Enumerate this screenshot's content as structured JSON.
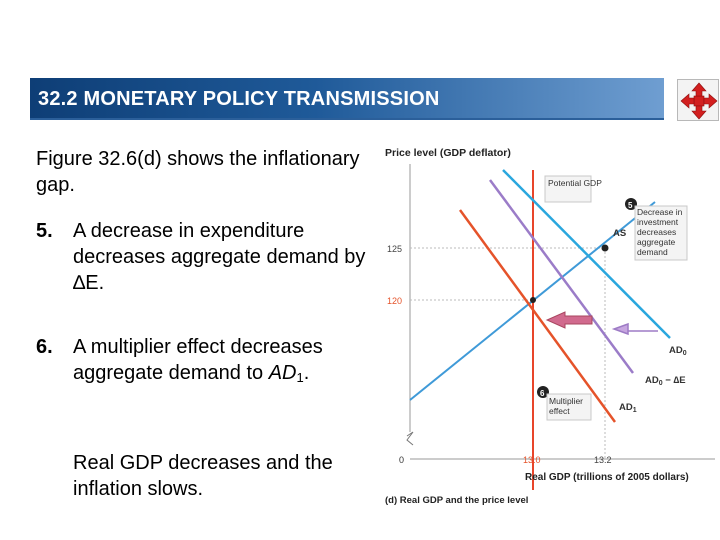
{
  "slide": {
    "title": "32.2  MONETARY POLICY TRANSMISSION",
    "nav_icon": "four-arrows-move-icon",
    "intro": "Figure 32.6(d) shows the inflationary gap.",
    "items": [
      {
        "number": "5.",
        "text": "A decrease in expenditure decreases aggregate demand by ∆E."
      },
      {
        "number": "6.",
        "text_before": "A multiplier effect decreases aggregate demand to ",
        "italic": "AD",
        "sub": "1",
        "text_after": "."
      }
    ],
    "closing": "Real GDP decreases and the inflation slows."
  },
  "chart_data": {
    "type": "line",
    "ylabel": "Price level (GDP deflator)",
    "xlabel": "Real GDP (trillions of 2005 dollars)",
    "caption": "(d) Real GDP and the price level",
    "origin_label": "0",
    "y_ticks": [
      "125",
      "120"
    ],
    "x_ticks": [
      "13.0",
      "13.2"
    ],
    "potential_gdp": {
      "label": "Potential GDP",
      "x": 13.0
    },
    "series": [
      {
        "name": "AS",
        "color": "#4aa3df"
      },
      {
        "name": "AD",
        "sub": "0",
        "color": "#2aa7de"
      },
      {
        "name": "AD",
        "sub": "0",
        "suffix": " − ∆E",
        "color": "#9b7cc8"
      },
      {
        "name": "AD",
        "sub": "1",
        "color": "#e5532a"
      }
    ],
    "callouts": [
      {
        "number": "5",
        "text": "Decrease in investment decreases aggregate demand"
      },
      {
        "number": "6",
        "text": "Multiplier effect"
      }
    ]
  }
}
